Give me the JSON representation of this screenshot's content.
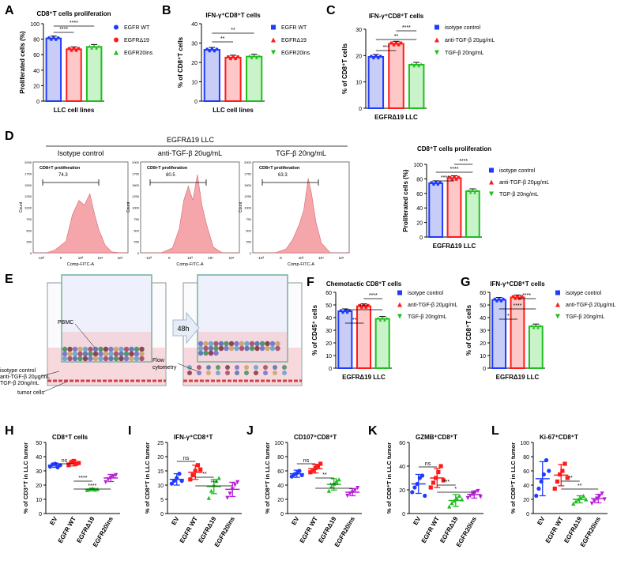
{
  "colors": {
    "blue": "#1f3bff",
    "red": "#ff1a1a",
    "green": "#1fbf1f",
    "purple": "#b41ed6",
    "blueFill": "#c8cdf7",
    "redFill": "#ffc8c8",
    "greenFill": "#c9f3c9",
    "flow": "#f4a6ab",
    "flowLine": "#d7686f"
  },
  "chart_data": [
    {
      "panel": "A",
      "type": "bar",
      "title": "CD8⁺T cells proliferation",
      "xlabel": "LLC cell lines",
      "ylabel": "Proliferated cells (%)",
      "ylim": [
        0,
        100
      ],
      "yticks": [
        0,
        20,
        40,
        60,
        80,
        100
      ],
      "categories": [
        "EGFR WT",
        "EGFRΔ19",
        "EGFR20ins"
      ],
      "values": [
        81,
        67,
        70
      ],
      "legend_marker": "circle",
      "significance": [
        {
          "pair": [
            0,
            1
          ],
          "label": "****"
        },
        {
          "pair": [
            0,
            2
          ],
          "label": "****"
        }
      ]
    },
    {
      "panel": "B",
      "type": "bar",
      "title": "IFN-γ⁺CD8⁺T cells",
      "xlabel": "LLC cell lines",
      "ylabel": "% of CD8⁺T cells",
      "ylim": [
        0,
        40
      ],
      "yticks": [
        0,
        10,
        20,
        30,
        40
      ],
      "categories": [
        "EGFR WT",
        "EGFRΔ19",
        "EGFR20ins"
      ],
      "values": [
        26.5,
        22.5,
        23
      ],
      "legend_marker": "mixed",
      "significance": [
        {
          "pair": [
            0,
            1
          ],
          "label": "**"
        },
        {
          "pair": [
            0,
            2
          ],
          "label": "**"
        }
      ]
    },
    {
      "panel": "C",
      "type": "bar",
      "title": "IFN-γ⁺CD8⁺T cells",
      "xlabel": "EGFRΔ19 LLC",
      "ylabel": "% of CD8⁺T cells",
      "ylim": [
        0,
        30
      ],
      "yticks": [
        0,
        10,
        20,
        30
      ],
      "categories": [
        "isotype control",
        "anti-TGF-β 20μg/mL",
        "TGF-β 20ng/mL"
      ],
      "values": [
        19.5,
        24.5,
        16.5
      ],
      "legend_marker": "mixed",
      "significance": [
        {
          "pair": [
            0,
            1
          ],
          "label": "***"
        },
        {
          "pair": [
            0,
            2
          ],
          "label": "**"
        },
        {
          "pair": [
            1,
            2
          ],
          "label": "****"
        }
      ]
    },
    {
      "panel": "D-right",
      "type": "bar",
      "title": "CD8⁺T cells proliferation",
      "xlabel": "EGFRΔ19 LLC",
      "ylabel": "Proliferated cells (%)",
      "ylim": [
        0,
        100
      ],
      "yticks": [
        0,
        20,
        40,
        60,
        80,
        100
      ],
      "categories": [
        "isotype control",
        "anti-TGF-β 20μg/mL",
        "TGF-β 20ng/mL"
      ],
      "values": [
        74,
        81,
        63
      ],
      "legend_marker": "mixed",
      "significance": [
        {
          "pair": [
            0,
            1
          ],
          "label": "****"
        },
        {
          "pair": [
            0,
            2
          ],
          "label": "****"
        },
        {
          "pair": [
            1,
            2
          ],
          "label": "****"
        }
      ]
    },
    {
      "panel": "F",
      "type": "bar",
      "title": "Chemotactic CD8⁺T cells",
      "xlabel": "EGFRΔ19 LLC",
      "ylabel": "% of CD45⁺ cells",
      "ylim": [
        0,
        60
      ],
      "yticks": [
        0,
        10,
        20,
        30,
        40,
        50,
        60
      ],
      "categories": [
        "isotype control",
        "anti-TGF-β 20μg/mL",
        "TGF-β 20ng/mL"
      ],
      "values": [
        45,
        49,
        39
      ],
      "legend_marker": "mixed",
      "significance": [
        {
          "pair": [
            0,
            1
          ],
          "label": "**"
        },
        {
          "pair": [
            0,
            2
          ],
          "label": "****"
        },
        {
          "pair": [
            1,
            2
          ],
          "label": "****"
        }
      ]
    },
    {
      "panel": "G",
      "type": "bar",
      "title": "IFN-γ⁺CD8⁺T cells",
      "xlabel": "EGFRΔ19 LLC",
      "ylabel": "% of CD8⁺T cells",
      "ylim": [
        0,
        60
      ],
      "yticks": [
        0,
        10,
        20,
        30,
        40,
        50,
        60
      ],
      "categories": [
        "isotype control",
        "anti-TGF-β 20μg/mL",
        "TGF-β 20ng/mL"
      ],
      "values": [
        54,
        56,
        33
      ],
      "legend_marker": "mixed",
      "significance": [
        {
          "pair": [
            0,
            1
          ],
          "label": "*"
        },
        {
          "pair": [
            0,
            2
          ],
          "label": "****"
        },
        {
          "pair": [
            1,
            2
          ],
          "label": "****"
        }
      ]
    },
    {
      "panel": "H",
      "type": "scatter",
      "title": "CD8⁺T cells",
      "ylabel": "% of CD3⁺T in LLC tumor",
      "ylim": [
        0,
        50
      ],
      "yticks": [
        0,
        10,
        20,
        30,
        40,
        50
      ],
      "categories": [
        "EV",
        "EGFR WT",
        "EGFRΔ19",
        "EGFR20ins"
      ],
      "means": [
        34,
        35.5,
        17,
        25
      ],
      "sd": [
        1.5,
        2,
        0.8,
        2.5
      ],
      "points": [
        [
          33,
          34.5,
          35,
          32.5,
          34
        ],
        [
          34,
          36,
          37,
          35,
          35.5
        ],
        [
          16.5,
          17,
          17.5,
          16.8,
          17.2
        ],
        [
          22,
          24,
          25,
          26,
          27
        ]
      ],
      "significance": [
        {
          "pair": [
            0,
            1
          ],
          "label": "ns"
        },
        {
          "pair": [
            1,
            2
          ],
          "label": "****"
        },
        {
          "pair": [
            1,
            3
          ],
          "label": "****"
        }
      ]
    },
    {
      "panel": "I",
      "type": "scatter",
      "title": "IFN-γ⁺CD8⁺T",
      "ylabel": "% of CD8⁺T in LLC tumor",
      "ylim": [
        0,
        25
      ],
      "yticks": [
        0,
        5,
        10,
        15,
        20,
        25
      ],
      "categories": [
        "EV",
        "EGFR WT",
        "EGFRΔ19",
        "EGFR20ins"
      ],
      "means": [
        12,
        14.5,
        9.5,
        8.5
      ],
      "sd": [
        2,
        2.5,
        2.5,
        2.5
      ],
      "points": [
        [
          10.5,
          11.5,
          12.5,
          14,
          11.5
        ],
        [
          12,
          13.5,
          15,
          17,
          15.5
        ],
        [
          5.5,
          8,
          10,
          11.5,
          12.5
        ],
        [
          5.5,
          7,
          8.5,
          10,
          11
        ]
      ],
      "significance": [
        {
          "pair": [
            0,
            1
          ],
          "label": "ns"
        },
        {
          "pair": [
            1,
            2
          ],
          "label": "**"
        },
        {
          "pair": [
            1,
            3
          ],
          "label": "***"
        }
      ]
    },
    {
      "panel": "J",
      "type": "scatter",
      "title": "CD107⁺CD8⁺T",
      "ylabel": "% of CD8⁺T in LLC tumor",
      "ylim": [
        0,
        100
      ],
      "yticks": [
        0,
        20,
        40,
        60,
        80,
        100
      ],
      "categories": [
        "EV",
        "EGFR WT",
        "EGFRΔ19",
        "EGFR20ins"
      ],
      "means": [
        56,
        63,
        41,
        30
      ],
      "sd": [
        5,
        6,
        8,
        5
      ],
      "points": [
        [
          52,
          55,
          57,
          60,
          54
        ],
        [
          58,
          61,
          64,
          67,
          70
        ],
        [
          32,
          38,
          42,
          46,
          48
        ],
        [
          25,
          28,
          30,
          33,
          36
        ]
      ],
      "significance": [
        {
          "pair": [
            0,
            1
          ],
          "label": "ns"
        },
        {
          "pair": [
            1,
            2
          ],
          "label": "**"
        },
        {
          "pair": [
            1,
            3
          ],
          "label": "****"
        }
      ]
    },
    {
      "panel": "K",
      "type": "scatter",
      "title": "GZMB⁺CD8⁺T",
      "ylabel": "% of CD8⁺T in LLC tumor",
      "ylim": [
        0,
        60
      ],
      "yticks": [
        0,
        20,
        40,
        60
      ],
      "categories": [
        "EV",
        "EGFR WT",
        "EGFRΔ19",
        "EGFR20ins"
      ],
      "means": [
        25,
        30,
        11,
        16
      ],
      "sd": [
        8,
        8,
        5,
        3
      ],
      "points": [
        [
          18,
          22,
          25,
          30,
          32,
          15
        ],
        [
          22,
          26,
          30,
          35,
          40,
          28
        ],
        [
          6,
          9,
          11,
          13,
          15,
          12
        ],
        [
          13,
          15,
          16,
          18,
          19,
          14
        ]
      ],
      "significance": [
        {
          "pair": [
            0,
            1
          ],
          "label": "ns"
        },
        {
          "pair": [
            1,
            2
          ],
          "label": "***"
        },
        {
          "pair": [
            1,
            3
          ],
          "label": "*"
        }
      ]
    },
    {
      "panel": "L",
      "type": "scatter",
      "title": "Ki-67⁺CD8⁺T",
      "ylabel": "% of CD8⁺T in LLC tumor",
      "ylim": [
        0,
        100
      ],
      "yticks": [
        0,
        20,
        40,
        60,
        80,
        100
      ],
      "categories": [
        "EV",
        "EGFR WT",
        "EGFRΔ19",
        "EGFR20ins"
      ],
      "means": [
        49,
        54,
        20,
        21
      ],
      "sd": [
        24,
        15,
        5,
        6
      ],
      "points": [
        [
          25,
          35,
          45,
          55,
          75,
          60
        ],
        [
          35,
          45,
          55,
          60,
          70,
          50
        ],
        [
          14,
          17,
          20,
          22,
          25,
          20
        ],
        [
          14,
          17,
          21,
          24,
          28,
          20
        ]
      ],
      "significance": [
        {
          "pair": [
            1,
            2
          ],
          "label": "**"
        },
        {
          "pair": [
            1,
            3
          ],
          "label": "**"
        }
      ]
    }
  ],
  "panel_labels": {
    "A": "A",
    "B": "B",
    "C": "C",
    "D": "D",
    "E": "E",
    "F": "F",
    "G": "G",
    "H": "H",
    "I": "I",
    "J": "J",
    "K": "K",
    "L": "L"
  },
  "flow": {
    "title": "EGFRΔ19 LLC",
    "groups": [
      "Isotype control",
      "anti-TGF-β 20ug/mL",
      "TGF-β 20ng/mL"
    ],
    "gate_label": "CD8+T proliferation",
    "gate_values": [
      "74.3",
      "80.5",
      "63.3"
    ],
    "x_axis_label": "Comp-FITC-A",
    "y_axis_label": "Count",
    "x_ticks": [
      "-10³",
      "0",
      "10³",
      "10⁴",
      "10⁵"
    ],
    "y_ticks": [
      "0",
      "250",
      "500",
      "750",
      "1000",
      "1250",
      "1500",
      "1750",
      "2000"
    ]
  },
  "schematic": {
    "pbmc": "PBMC",
    "time": "48h",
    "treatment": [
      "isotype control",
      "anti-TGF-β 20μg/mL",
      "TGF-β 20ng/mL"
    ],
    "tumor": "tumor cells",
    "readout": [
      "Flow",
      "cytometry"
    ]
  }
}
